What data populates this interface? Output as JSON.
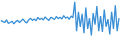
{
  "chart_data": {
    "type": "line",
    "color": "#3a8fd6",
    "values": [
      55,
      52,
      50,
      56,
      48,
      50,
      53,
      47,
      52,
      55,
      50,
      54,
      58,
      52,
      49,
      56,
      60,
      55,
      58,
      54,
      62,
      57,
      60,
      56,
      63,
      58,
      55,
      62,
      60,
      57,
      64,
      59,
      62,
      58,
      66,
      60,
      63,
      57,
      65,
      61,
      98,
      30,
      75,
      40,
      70,
      25,
      85,
      35,
      60,
      20,
      72,
      45,
      88,
      30,
      65,
      28,
      80,
      40,
      58,
      22,
      75,
      35,
      90,
      30,
      60
    ],
    "ylim": [
      0,
      100
    ],
    "grid": false,
    "tick_labels": false
  }
}
